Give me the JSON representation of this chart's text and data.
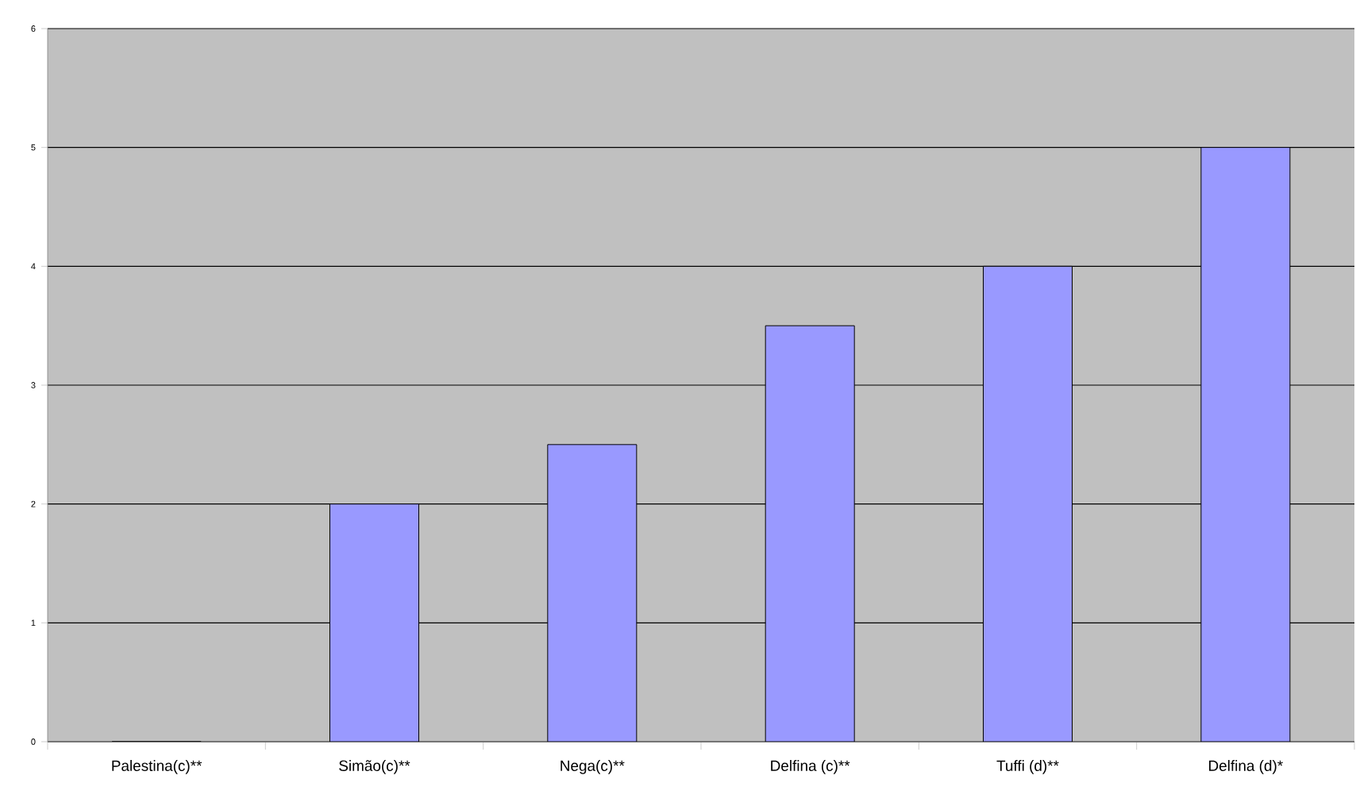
{
  "chart_data": {
    "type": "bar",
    "categories": [
      "Palestina(c)**",
      "Simão(c)**",
      "Nega(c)**",
      "Delfina (c)**",
      "Tuffi (d)**",
      "Delfina (d)*"
    ],
    "values": [
      0,
      2,
      2.5,
      3.5,
      4,
      5
    ],
    "color": "#9999ff",
    "ylim": [
      0,
      6
    ],
    "yticks": [
      0,
      1,
      2,
      3,
      4,
      5,
      6
    ],
    "grid": "y"
  }
}
